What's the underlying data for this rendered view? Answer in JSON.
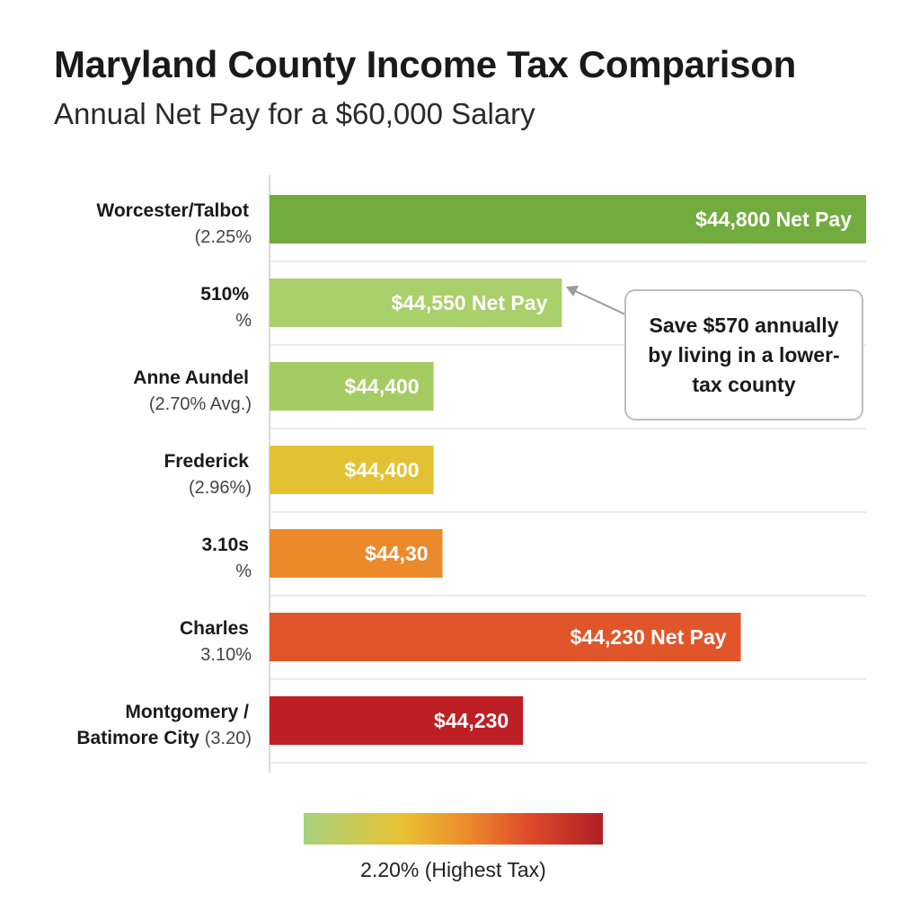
{
  "title": "Maryland County Income Tax Comparison",
  "subtitle": "Annual Net Pay for a $60,000 Salary",
  "callout": {
    "text": "Save $570 annually by living in a lower-tax county",
    "target": "510% %"
  },
  "legend": {
    "label": "2.20% (Highest Tax)",
    "colors": [
      "#a7d17e",
      "#e9c233",
      "#ec8a2b",
      "#df4b2a",
      "#b01e24"
    ]
  },
  "chart_data": {
    "type": "bar",
    "orientation": "horizontal",
    "title": "Maryland County Income Tax Comparison",
    "subtitle": "Annual Net Pay for a $60,000 Salary",
    "grid": true,
    "categories": [
      {
        "name": "Worcester/Talbot",
        "sub": "(2.25%"
      },
      {
        "name": "510%",
        "sub": "%"
      },
      {
        "name": "Anne Aundel",
        "sub": "(2.70% Avg.)"
      },
      {
        "name": "Frederick",
        "sub": "(2.96%)"
      },
      {
        "name": "3.10s",
        "sub": "%"
      },
      {
        "name": "Charles",
        "sub": "3.10%"
      },
      {
        "name": "Montgomery /",
        "sub": "Batimore City",
        "sub_tail": "(3.20)"
      }
    ],
    "bar_labels": [
      "$44,800 Net Pay",
      "$44,550 Net Pay",
      "$44,400",
      "$44,400",
      "$44,30",
      "$44,230 Net Pay",
      "$44,230"
    ],
    "relative_bar_length": [
      1.0,
      0.49,
      0.275,
      0.275,
      0.29,
      0.79,
      0.425
    ],
    "colors": [
      "#72ac3e",
      "#a9d06a",
      "#a5cb63",
      "#e2c233",
      "#ec8a2b",
      "#e0562a",
      "#bd1f24"
    ]
  }
}
